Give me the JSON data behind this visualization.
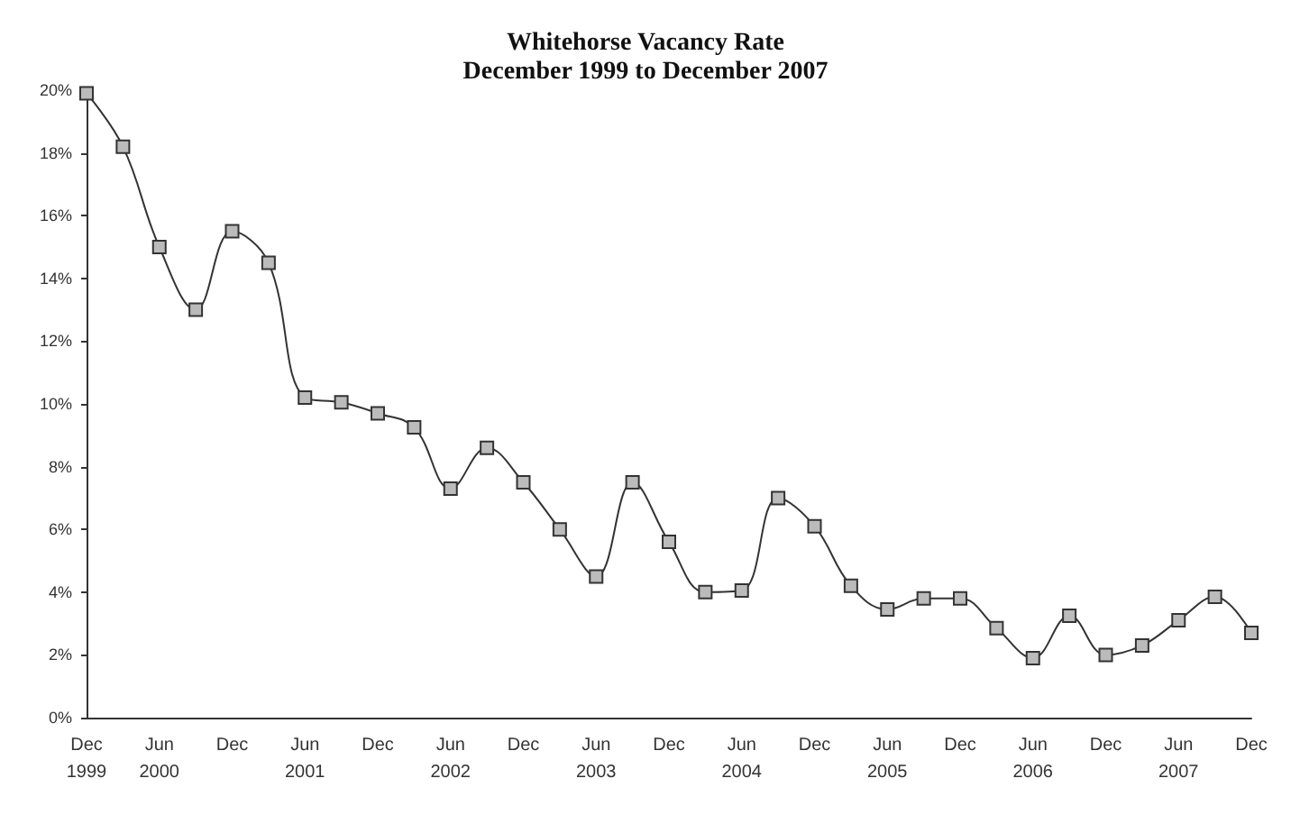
{
  "chart_data": {
    "type": "line",
    "title": "Whitehorse Vacancy Rate",
    "subtitle": "December 1999 to December 2007",
    "categories": [
      "Dec\n1999",
      null,
      "Jun\n2000",
      null,
      "Dec",
      null,
      "Jun\n2001",
      null,
      "Dec",
      null,
      "Jun\n2002",
      null,
      "Dec",
      null,
      "Jun\n2003",
      null,
      "Dec",
      null,
      "Jun\n2004",
      null,
      "Dec",
      null,
      "Jun\n2005",
      null,
      "Dec",
      null,
      "Jun\n2006",
      null,
      "Dec",
      null,
      "Jun\n2007",
      null,
      "Dec"
    ],
    "series": [
      {
        "color": "#333333",
        "values": [
          19.9,
          18.2,
          15.0,
          13.0,
          15.5,
          14.5,
          10.2,
          10.05,
          9.7,
          9.25,
          7.3,
          8.6,
          7.5,
          6.0,
          4.5,
          7.5,
          5.6,
          4.0,
          4.05,
          7.0,
          6.1,
          4.2,
          3.45,
          3.8,
          3.8,
          2.85,
          1.9,
          3.25,
          2.0,
          2.3,
          3.1,
          3.85,
          2.7
        ]
      }
    ],
    "ylim": [
      0,
      20
    ],
    "yticks": [
      {
        "value": 0,
        "label": "0%"
      },
      {
        "value": 2,
        "label": "2%"
      },
      {
        "value": 4,
        "label": "4%"
      },
      {
        "value": 6,
        "label": "6%"
      },
      {
        "value": 8,
        "label": "8%"
      },
      {
        "value": 10,
        "label": "10%"
      },
      {
        "value": 12,
        "label": "12%"
      },
      {
        "value": 14,
        "label": "14%"
      },
      {
        "value": 16,
        "label": "16%"
      },
      {
        "value": 18,
        "label": "18%"
      },
      {
        "value": 20,
        "label": "20%"
      }
    ],
    "grid": false,
    "marker": "square",
    "line_style": "solid"
  }
}
